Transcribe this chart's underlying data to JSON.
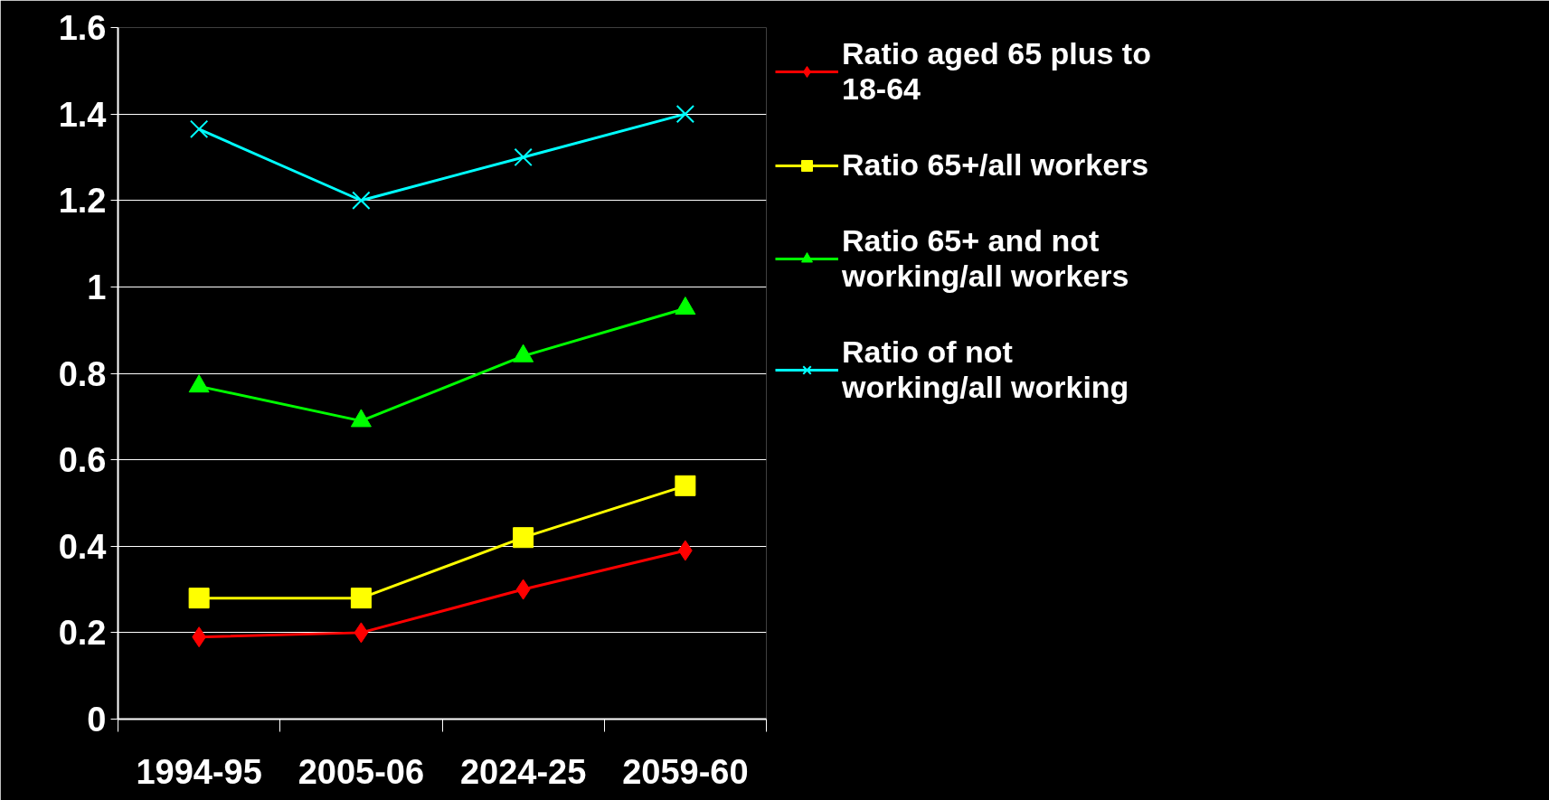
{
  "chart_data": {
    "type": "line",
    "categories": [
      "1994-95",
      "2005-06",
      "2024-25",
      "2059-60"
    ],
    "series": [
      {
        "name": "Ratio aged 65 plus to 18-64",
        "color": "#ff0000",
        "marker": "diamond",
        "values": [
          0.19,
          0.2,
          0.3,
          0.39
        ]
      },
      {
        "name": "Ratio 65+/all workers",
        "color": "#ffff00",
        "marker": "square",
        "values": [
          0.28,
          0.28,
          0.42,
          0.54
        ]
      },
      {
        "name": "Ratio 65+ and not working/all workers",
        "color": "#00ff00",
        "marker": "triangle",
        "values": [
          0.77,
          0.69,
          0.84,
          0.95
        ]
      },
      {
        "name": "Ratio of not working/all working",
        "color": "#00ffff",
        "marker": "cross",
        "values": [
          1.365,
          1.2,
          1.3,
          1.4
        ]
      }
    ],
    "ylim": [
      0,
      1.6
    ],
    "yticks": [
      0,
      0.2,
      0.4,
      0.6,
      0.8,
      1,
      1.2,
      1.4,
      1.6
    ],
    "grid": "y",
    "legend": "right"
  }
}
